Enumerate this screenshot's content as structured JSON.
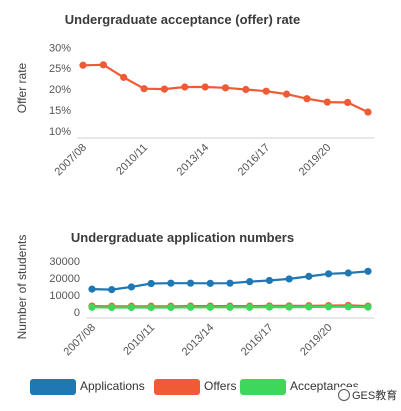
{
  "chart_data": [
    {
      "type": "line",
      "title": "Undergraduate acceptance (offer) rate",
      "ylabel": "Offer rate",
      "xlabel": "",
      "ylim": [
        9.5,
        31.5
      ],
      "yticks": [
        10,
        15,
        20,
        25,
        30
      ],
      "ytick_labels": [
        "10%",
        "15%",
        "20%",
        "25%",
        "30%"
      ],
      "xtick_labels": [
        "2007/08",
        "2010/11",
        "2013/14",
        "2016/17",
        "2019/20"
      ],
      "xtick_indices": [
        0,
        3,
        6,
        9,
        12
      ],
      "grid": false,
      "series": [
        {
          "color": "#f05a35",
          "values": [
            25.7,
            25.8,
            22.8,
            20.1,
            20.0,
            20.5,
            20.5,
            20.3,
            19.9,
            19.5,
            18.8,
            17.7,
            16.9,
            16.8,
            14.5
          ]
        }
      ]
    },
    {
      "type": "line",
      "title": "Undergraduate application numbers",
      "ylabel": "Number of students",
      "xlabel": "",
      "ylim": [
        -3500,
        33000
      ],
      "yticks": [
        0,
        10000,
        20000,
        30000
      ],
      "ytick_labels": [
        "0",
        "10000",
        "20000",
        "30000"
      ],
      "xtick_labels": [
        "2007/08",
        "2010/11",
        "2013/14",
        "2016/17",
        "2019/20"
      ],
      "xtick_indices": [
        0,
        3,
        6,
        9,
        12
      ],
      "grid": false,
      "legend_position": "bottom",
      "series": [
        {
          "name": "Applications",
          "color": "#1f77b4",
          "values": [
            13500,
            13200,
            14800,
            16800,
            17000,
            17000,
            16900,
            17000,
            17900,
            18600,
            19500,
            21000,
            22500,
            23000,
            24000
          ]
        },
        {
          "name": "Offers",
          "color": "#f05a35",
          "values": [
            3500,
            3400,
            3400,
            3400,
            3400,
            3500,
            3500,
            3500,
            3500,
            3600,
            3600,
            3700,
            3800,
            3900,
            3500
          ]
        },
        {
          "name": "Acceptances",
          "color": "#3fd65c",
          "values": [
            2800,
            2700,
            2700,
            2700,
            2700,
            2800,
            2800,
            2800,
            2800,
            2900,
            2900,
            3000,
            3100,
            3100,
            2900
          ]
        }
      ]
    }
  ],
  "watermark": "GES教育"
}
